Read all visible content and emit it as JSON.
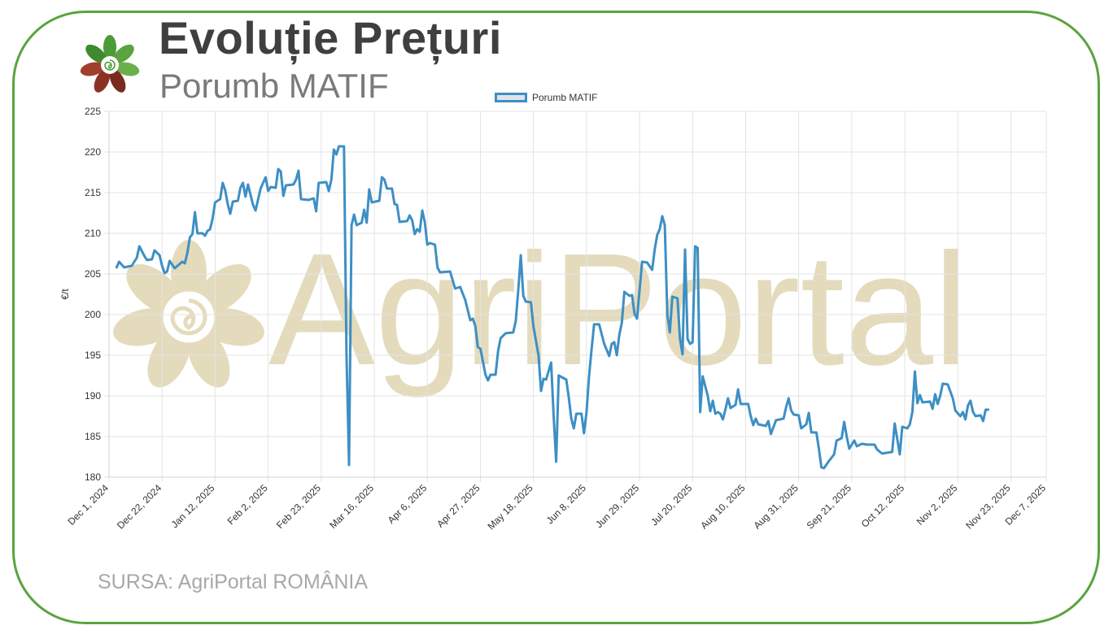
{
  "header": {
    "title": "Evoluție Prețuri",
    "subtitle": "Porumb MATIF"
  },
  "watermark": {
    "text": "AgriPortal",
    "color": "#dccfa8"
  },
  "footer": {
    "source": "SURSA: AgriPortal ROMÂNIA"
  },
  "colors": {
    "frame": "#5aa33f",
    "line": "#3d8fc4",
    "grid": "#e3e3e3"
  },
  "chart_data": {
    "type": "line",
    "title": "",
    "xlabel": "",
    "ylabel": "€/t",
    "ylim": [
      180,
      225
    ],
    "yticks": [
      180,
      185,
      190,
      195,
      200,
      205,
      210,
      215,
      220,
      225
    ],
    "xlim": [
      "2024-12-01",
      "2025-12-07"
    ],
    "xticks": [
      "Dec 1, 2024",
      "Dec 22, 2024",
      "Jan 12, 2025",
      "Feb 2, 2025",
      "Feb 23, 2025",
      "Mar 16, 2025",
      "Apr 6, 2025",
      "Apr 27, 2025",
      "May 18, 2025",
      "Jun 8, 2025",
      "Jun 29, 2025",
      "Jul 20, 2025",
      "Aug 10, 2025",
      "Aug 31, 2025",
      "Sep 21, 2025",
      "Oct 12, 2025",
      "Nov 2, 2025",
      "Nov 23, 2025",
      "Dec 7, 2025"
    ],
    "grid": true,
    "legend_position": "top-center",
    "series": [
      {
        "name": "Porumb MATIF",
        "color": "#3d8fc4",
        "points": [
          [
            "2024-12-04",
            205.8
          ],
          [
            "2024-12-05",
            206.5
          ],
          [
            "2024-12-07",
            205.8
          ],
          [
            "2024-12-10",
            206.0
          ],
          [
            "2024-12-12",
            207.0
          ],
          [
            "2024-12-13",
            208.4
          ],
          [
            "2024-12-15",
            207.2
          ],
          [
            "2024-12-16",
            206.7
          ],
          [
            "2024-12-18",
            206.8
          ],
          [
            "2024-12-19",
            207.9
          ],
          [
            "2024-12-21",
            207.3
          ],
          [
            "2024-12-22",
            206.0
          ],
          [
            "2024-12-23",
            205.1
          ],
          [
            "2024-12-24",
            205.3
          ],
          [
            "2024-12-25",
            206.6
          ],
          [
            "2024-12-27",
            205.7
          ],
          [
            "2024-12-30",
            206.5
          ],
          [
            "2024-12-31",
            206.3
          ],
          [
            "2025-01-01",
            207.6
          ],
          [
            "2025-01-02",
            209.5
          ],
          [
            "2025-01-03",
            209.9
          ],
          [
            "2025-01-04",
            212.6
          ],
          [
            "2025-01-05",
            210.0
          ],
          [
            "2025-01-07",
            210.0
          ],
          [
            "2025-01-08",
            209.7
          ],
          [
            "2025-01-09",
            210.3
          ],
          [
            "2025-01-10",
            210.5
          ],
          [
            "2025-01-11",
            211.8
          ],
          [
            "2025-01-12",
            213.8
          ],
          [
            "2025-01-14",
            214.2
          ],
          [
            "2025-01-15",
            216.2
          ],
          [
            "2025-01-16",
            215.3
          ],
          [
            "2025-01-17",
            213.6
          ],
          [
            "2025-01-18",
            212.4
          ],
          [
            "2025-01-19",
            213.9
          ],
          [
            "2025-01-21",
            214.0
          ],
          [
            "2025-01-22",
            215.6
          ],
          [
            "2025-01-23",
            216.2
          ],
          [
            "2025-01-24",
            214.5
          ],
          [
            "2025-01-25",
            216.0
          ],
          [
            "2025-01-27",
            213.5
          ],
          [
            "2025-01-28",
            212.8
          ],
          [
            "2025-01-30",
            215.5
          ],
          [
            "2025-02-01",
            216.9
          ],
          [
            "2025-02-02",
            215.2
          ],
          [
            "2025-02-03",
            215.7
          ],
          [
            "2025-02-05",
            215.6
          ],
          [
            "2025-02-06",
            217.9
          ],
          [
            "2025-02-07",
            217.6
          ],
          [
            "2025-02-08",
            214.6
          ],
          [
            "2025-02-09",
            215.9
          ],
          [
            "2025-02-12",
            216.0
          ],
          [
            "2025-02-13",
            216.6
          ],
          [
            "2025-02-14",
            217.7
          ],
          [
            "2025-02-15",
            214.2
          ],
          [
            "2025-02-18",
            214.1
          ],
          [
            "2025-02-20",
            214.3
          ],
          [
            "2025-02-21",
            212.7
          ],
          [
            "2025-02-22",
            216.2
          ],
          [
            "2025-02-25",
            216.3
          ],
          [
            "2025-02-26",
            215.2
          ],
          [
            "2025-02-27",
            216.6
          ],
          [
            "2025-02-28",
            220.3
          ],
          [
            "2025-03-01",
            219.7
          ],
          [
            "2025-03-02",
            220.7
          ],
          [
            "2025-03-04",
            220.7
          ],
          [
            "2025-03-05",
            195.0
          ],
          [
            "2025-03-06",
            181.5
          ],
          [
            "2025-03-07",
            211.0
          ],
          [
            "2025-03-08",
            212.3
          ],
          [
            "2025-03-09",
            211.0
          ],
          [
            "2025-03-11",
            211.3
          ],
          [
            "2025-03-12",
            212.9
          ],
          [
            "2025-03-13",
            211.3
          ],
          [
            "2025-03-14",
            215.4
          ],
          [
            "2025-03-15",
            213.8
          ],
          [
            "2025-03-18",
            214.0
          ],
          [
            "2025-03-19",
            216.9
          ],
          [
            "2025-03-20",
            216.6
          ],
          [
            "2025-03-21",
            215.5
          ],
          [
            "2025-03-23",
            215.5
          ],
          [
            "2025-03-24",
            213.6
          ],
          [
            "2025-03-25",
            213.5
          ],
          [
            "2025-03-26",
            211.4
          ],
          [
            "2025-03-29",
            211.5
          ],
          [
            "2025-03-30",
            212.2
          ],
          [
            "2025-03-31",
            211.6
          ],
          [
            "2025-04-01",
            209.9
          ],
          [
            "2025-04-02",
            210.5
          ],
          [
            "2025-04-03",
            210.2
          ],
          [
            "2025-04-04",
            212.8
          ],
          [
            "2025-04-05",
            211.4
          ],
          [
            "2025-04-06",
            208.6
          ],
          [
            "2025-04-07",
            208.8
          ],
          [
            "2025-04-09",
            208.6
          ],
          [
            "2025-04-10",
            205.8
          ],
          [
            "2025-04-11",
            205.2
          ],
          [
            "2025-04-15",
            205.3
          ],
          [
            "2025-04-17",
            203.2
          ],
          [
            "2025-04-19",
            203.4
          ],
          [
            "2025-04-21",
            201.8
          ],
          [
            "2025-04-23",
            199.3
          ],
          [
            "2025-04-24",
            199.5
          ],
          [
            "2025-04-25",
            198.6
          ],
          [
            "2025-04-26",
            196.0
          ],
          [
            "2025-04-27",
            195.8
          ],
          [
            "2025-04-29",
            192.6
          ],
          [
            "2025-04-30",
            191.9
          ],
          [
            "2025-05-01",
            192.6
          ],
          [
            "2025-05-03",
            192.6
          ],
          [
            "2025-05-04",
            195.5
          ],
          [
            "2025-05-05",
            197.1
          ],
          [
            "2025-05-07",
            197.7
          ],
          [
            "2025-05-10",
            197.8
          ],
          [
            "2025-05-11",
            199.2
          ],
          [
            "2025-05-12",
            203.0
          ],
          [
            "2025-05-13",
            207.3
          ],
          [
            "2025-05-14",
            202.3
          ],
          [
            "2025-05-15",
            201.6
          ],
          [
            "2025-05-17",
            201.5
          ],
          [
            "2025-05-18",
            198.5
          ],
          [
            "2025-05-20",
            195.0
          ],
          [
            "2025-05-21",
            190.6
          ],
          [
            "2025-05-22",
            192.1
          ],
          [
            "2025-05-23",
            192.0
          ],
          [
            "2025-05-25",
            194.1
          ],
          [
            "2025-05-26",
            187.5
          ],
          [
            "2025-05-27",
            181.9
          ],
          [
            "2025-05-28",
            192.5
          ],
          [
            "2025-05-31",
            192.0
          ],
          [
            "2025-06-01",
            189.8
          ],
          [
            "2025-06-02",
            187.2
          ],
          [
            "2025-06-03",
            186.0
          ],
          [
            "2025-06-04",
            187.8
          ],
          [
            "2025-06-06",
            187.8
          ],
          [
            "2025-06-07",
            185.4
          ],
          [
            "2025-06-08",
            188.0
          ],
          [
            "2025-06-09",
            192.4
          ],
          [
            "2025-06-10",
            195.7
          ],
          [
            "2025-06-11",
            198.8
          ],
          [
            "2025-06-13",
            198.8
          ],
          [
            "2025-06-15",
            196.4
          ],
          [
            "2025-06-17",
            194.9
          ],
          [
            "2025-06-18",
            196.4
          ],
          [
            "2025-06-19",
            196.6
          ],
          [
            "2025-06-20",
            195.0
          ],
          [
            "2025-06-21",
            197.5
          ],
          [
            "2025-06-22",
            199.0
          ],
          [
            "2025-06-23",
            202.8
          ],
          [
            "2025-06-25",
            202.3
          ],
          [
            "2025-06-26",
            202.4
          ],
          [
            "2025-06-27",
            200.1
          ],
          [
            "2025-06-28",
            199.5
          ],
          [
            "2025-06-30",
            206.5
          ],
          [
            "2025-07-02",
            206.4
          ],
          [
            "2025-07-04",
            205.5
          ],
          [
            "2025-07-05",
            208.0
          ],
          [
            "2025-07-06",
            209.8
          ],
          [
            "2025-07-07",
            210.5
          ],
          [
            "2025-07-08",
            212.1
          ],
          [
            "2025-07-09",
            211.0
          ],
          [
            "2025-07-10",
            200.0
          ],
          [
            "2025-07-11",
            197.8
          ],
          [
            "2025-07-12",
            202.2
          ],
          [
            "2025-07-14",
            202.0
          ],
          [
            "2025-07-15",
            197.0
          ],
          [
            "2025-07-16",
            195.1
          ],
          [
            "2025-07-17",
            208.0
          ],
          [
            "2025-07-18",
            197.0
          ],
          [
            "2025-07-19",
            196.4
          ],
          [
            "2025-07-20",
            196.6
          ],
          [
            "2025-07-21",
            208.4
          ],
          [
            "2025-07-22",
            208.2
          ],
          [
            "2025-07-23",
            188.0
          ],
          [
            "2025-07-24",
            192.4
          ],
          [
            "2025-07-25",
            191.2
          ],
          [
            "2025-07-26",
            190.0
          ],
          [
            "2025-07-27",
            188.1
          ],
          [
            "2025-07-28",
            189.4
          ],
          [
            "2025-07-29",
            187.8
          ],
          [
            "2025-07-30",
            188.0
          ],
          [
            "2025-07-31",
            187.8
          ],
          [
            "2025-08-01",
            187.1
          ],
          [
            "2025-08-02",
            188.3
          ],
          [
            "2025-08-03",
            189.7
          ],
          [
            "2025-08-04",
            188.5
          ],
          [
            "2025-08-06",
            188.9
          ],
          [
            "2025-08-07",
            190.8
          ],
          [
            "2025-08-08",
            189.0
          ],
          [
            "2025-08-11",
            189.0
          ],
          [
            "2025-08-12",
            187.5
          ],
          [
            "2025-08-13",
            186.4
          ],
          [
            "2025-08-14",
            187.2
          ],
          [
            "2025-08-15",
            186.5
          ],
          [
            "2025-08-18",
            186.3
          ],
          [
            "2025-08-19",
            186.9
          ],
          [
            "2025-08-20",
            185.3
          ],
          [
            "2025-08-22",
            187.0
          ],
          [
            "2025-08-25",
            187.2
          ],
          [
            "2025-08-26",
            188.6
          ],
          [
            "2025-08-27",
            189.7
          ],
          [
            "2025-08-28",
            188.2
          ],
          [
            "2025-08-29",
            187.7
          ],
          [
            "2025-08-31",
            187.6
          ],
          [
            "2025-09-01",
            186.0
          ],
          [
            "2025-09-03",
            186.5
          ],
          [
            "2025-09-04",
            187.9
          ],
          [
            "2025-09-05",
            185.5
          ],
          [
            "2025-09-07",
            185.5
          ],
          [
            "2025-09-08",
            183.5
          ],
          [
            "2025-09-09",
            181.2
          ],
          [
            "2025-09-10",
            181.1
          ],
          [
            "2025-09-12",
            182.0
          ],
          [
            "2025-09-14",
            182.8
          ],
          [
            "2025-09-15",
            184.5
          ],
          [
            "2025-09-17",
            184.8
          ],
          [
            "2025-09-18",
            186.8
          ],
          [
            "2025-09-19",
            185.0
          ],
          [
            "2025-09-20",
            183.5
          ],
          [
            "2025-09-22",
            184.5
          ],
          [
            "2025-09-23",
            183.8
          ],
          [
            "2025-09-25",
            184.1
          ],
          [
            "2025-09-27",
            184.0
          ],
          [
            "2025-09-30",
            184.0
          ],
          [
            "2025-10-01",
            183.4
          ],
          [
            "2025-10-03",
            182.9
          ],
          [
            "2025-10-07",
            183.1
          ],
          [
            "2025-10-08",
            186.6
          ],
          [
            "2025-10-10",
            182.8
          ],
          [
            "2025-10-11",
            186.2
          ],
          [
            "2025-10-13",
            186.0
          ],
          [
            "2025-10-14",
            186.5
          ],
          [
            "2025-10-15",
            188.0
          ],
          [
            "2025-10-16",
            193.0
          ],
          [
            "2025-10-17",
            189.1
          ],
          [
            "2025-10-18",
            190.1
          ],
          [
            "2025-10-19",
            189.2
          ],
          [
            "2025-10-22",
            189.3
          ],
          [
            "2025-10-23",
            188.4
          ],
          [
            "2025-10-24",
            190.2
          ],
          [
            "2025-10-25",
            189.0
          ],
          [
            "2025-10-26",
            190.0
          ],
          [
            "2025-10-27",
            191.5
          ],
          [
            "2025-10-29",
            191.4
          ],
          [
            "2025-10-31",
            189.7
          ],
          [
            "2025-11-01",
            188.2
          ],
          [
            "2025-11-03",
            187.5
          ],
          [
            "2025-11-04",
            188.0
          ],
          [
            "2025-11-05",
            187.1
          ],
          [
            "2025-11-06",
            188.8
          ],
          [
            "2025-11-07",
            189.4
          ],
          [
            "2025-11-08",
            188.0
          ],
          [
            "2025-11-09",
            187.5
          ],
          [
            "2025-11-11",
            187.6
          ],
          [
            "2025-11-12",
            186.9
          ],
          [
            "2025-11-13",
            188.3
          ],
          [
            "2025-11-14",
            188.3
          ]
        ]
      }
    ]
  }
}
